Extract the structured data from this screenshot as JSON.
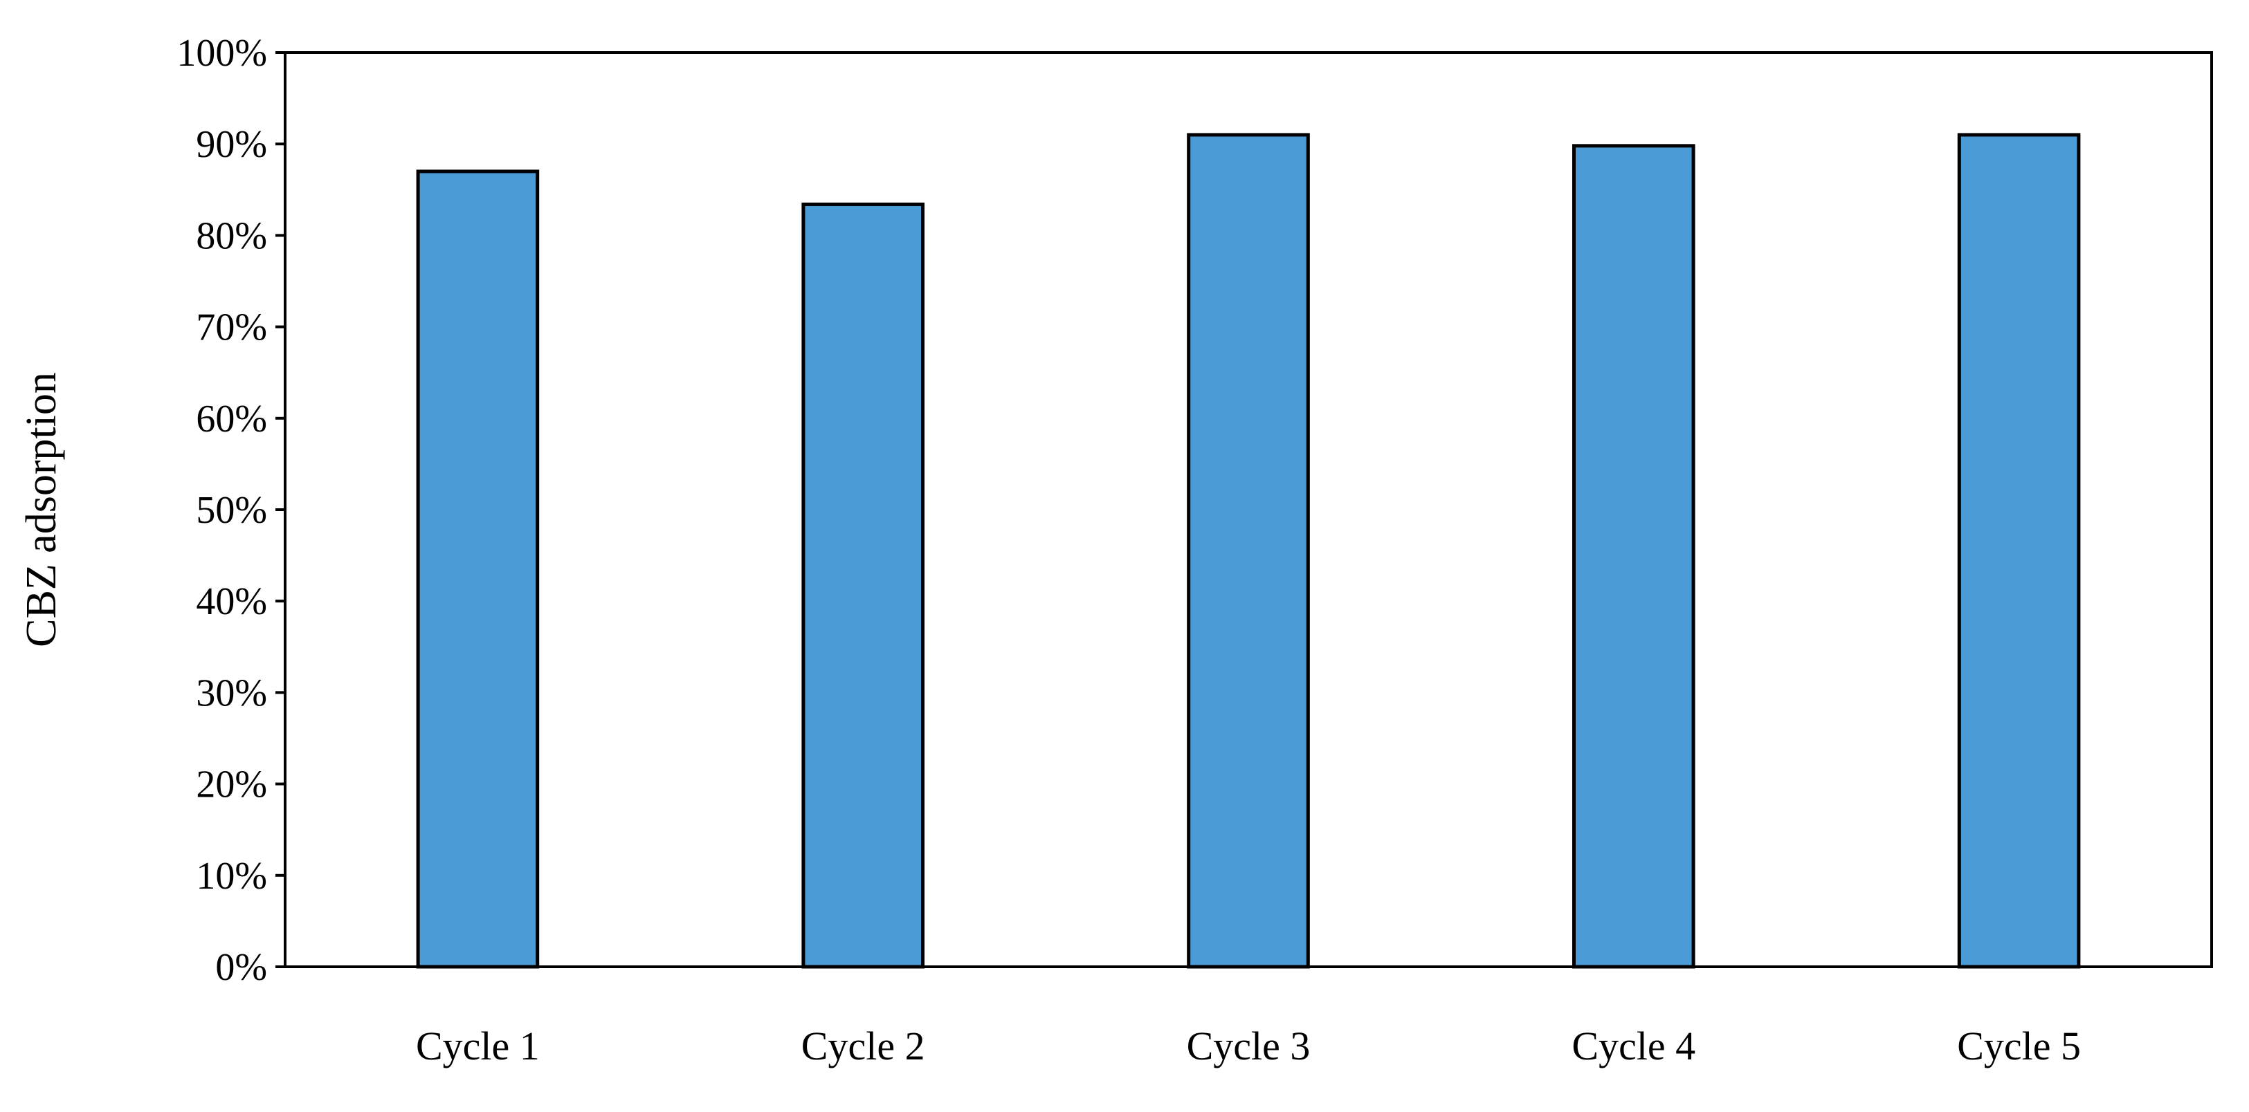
{
  "chart_data": {
    "type": "bar",
    "categories": [
      "Cycle 1",
      "Cycle 2",
      "Cycle 3",
      "Cycle 4",
      "Cycle 5"
    ],
    "values": [
      0.87,
      0.834,
      0.91,
      0.898,
      0.91
    ],
    "title": "",
    "xlabel": "",
    "ylabel": "CBZ adsorption",
    "ylim": [
      0,
      1
    ],
    "yticks": [
      0,
      0.1,
      0.2,
      0.3,
      0.4,
      0.5,
      0.6,
      0.7,
      0.8,
      0.9,
      1.0
    ],
    "ytick_labels": [
      "0%",
      "10%",
      "20%",
      "30%",
      "40%",
      "50%",
      "60%",
      "70%",
      "80%",
      "90%",
      "100%"
    ],
    "grid": false,
    "legend": "none",
    "colors": {
      "bar_fill": "#4a9bd6",
      "bar_stroke": "#000000",
      "axis": "#000000",
      "background": "#ffffff"
    }
  }
}
